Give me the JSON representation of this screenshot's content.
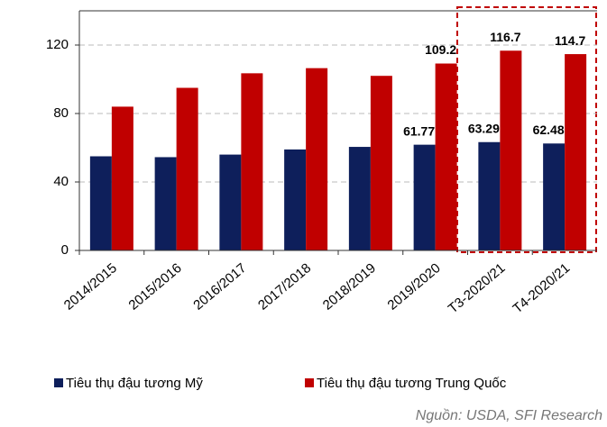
{
  "chart_data": {
    "type": "bar",
    "categories": [
      "2014/2015",
      "2015/2016",
      "2016/2017",
      "2017/2018",
      "2018/2019",
      "2019/2020",
      "T3-2020/21",
      "T4-2020/21"
    ],
    "series": [
      {
        "name": "Tiêu thụ đậu tương Mỹ",
        "color": "#0e1f5b",
        "values": [
          55,
          54.5,
          56,
          59,
          60.5,
          61.77,
          63.29,
          62.48
        ],
        "value_labels": [
          null,
          null,
          null,
          null,
          null,
          "61.77",
          "63.29",
          "62.48"
        ]
      },
      {
        "name": "Tiêu thụ đậu tương Trung Quốc",
        "color": "#c00000",
        "values": [
          84,
          95,
          103.5,
          106.5,
          102,
          109.2,
          116.7,
          114.7
        ],
        "value_labels": [
          null,
          null,
          null,
          null,
          null,
          "109.2",
          "116.7",
          "114.7"
        ]
      }
    ],
    "ylim": [
      0,
      140
    ],
    "yticks": [
      0,
      40,
      80,
      120
    ],
    "grid": true,
    "source": "Nguồn: USDA, SFI Research"
  }
}
